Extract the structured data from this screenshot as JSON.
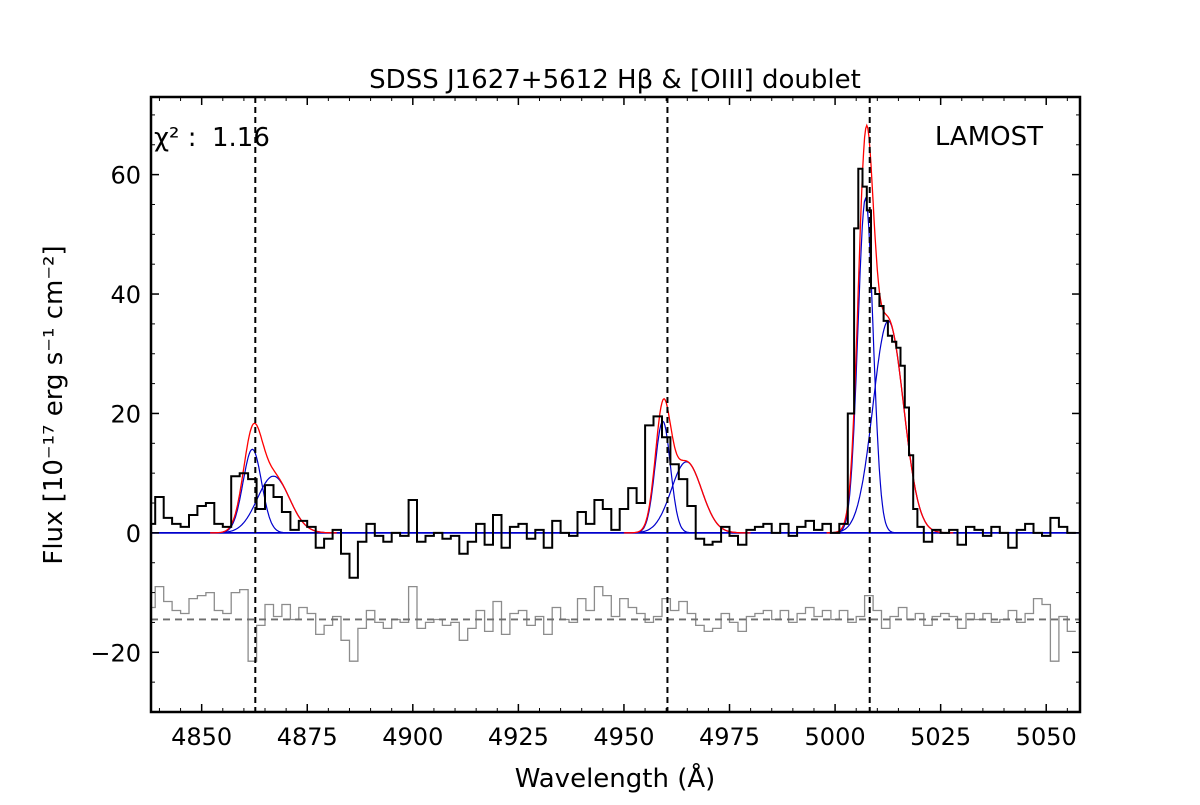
{
  "chart_data": {
    "type": "line",
    "title": "SDSS J1627+5612 Hβ & [OIII] doublet",
    "xlabel": "Wavelength (Å)",
    "ylabel": "Flux [10⁻¹⁷ erg s⁻¹ cm⁻²]",
    "xlim": [
      4838,
      5058
    ],
    "ylim": [
      -30,
      73
    ],
    "x_ticks": [
      4850,
      4875,
      4900,
      4925,
      4950,
      4975,
      5000,
      5025,
      5050
    ],
    "y_ticks": [
      -20,
      0,
      20,
      40,
      60
    ],
    "grid": false,
    "annotations": {
      "chi2_label": "χ² :",
      "chi2_value": "1.16",
      "instrument": "LAMOST"
    },
    "vertical_lines": [
      4862.7,
      4960.3,
      5008.2
    ],
    "residual_offset": -14.5,
    "colors": {
      "data": "#000000",
      "total_fit": "#ff0000",
      "components": "#0000cc",
      "residual": "#8c8c8c",
      "reference": "#000000"
    },
    "fit_components": [
      {
        "center": 4862.0,
        "amplitude": 14.0,
        "sigma": 2.2
      },
      {
        "center": 4867.0,
        "amplitude": 9.5,
        "sigma": 3.8
      },
      {
        "center": 4959.2,
        "amplitude": 18.7,
        "sigma": 1.8
      },
      {
        "center": 4964.8,
        "amplitude": 11.9,
        "sigma": 3.6
      },
      {
        "center": 5007.2,
        "amplitude": 56.0,
        "sigma": 1.8
      },
      {
        "center": 5012.6,
        "amplitude": 35.5,
        "sigma": 3.6
      }
    ],
    "series": [
      {
        "x": [
          4838,
          4840,
          4842,
          4844,
          4846,
          4848,
          4850,
          4852,
          4854,
          4856,
          4858,
          4860,
          4862,
          4864,
          4866,
          4868,
          4870,
          4872,
          4874,
          4876,
          4878,
          4880,
          4882,
          4884,
          4886,
          4888,
          4890,
          4892,
          4894,
          4896,
          4898,
          4900,
          4902,
          4904,
          4906,
          4908,
          4910,
          4912,
          4914,
          4916,
          4918,
          4920,
          4922,
          4924,
          4926,
          4928,
          4930,
          4932,
          4934,
          4936,
          4938,
          4940,
          4942,
          4944,
          4946,
          4948,
          4950,
          4952,
          4954,
          4956,
          4958,
          4960,
          4962,
          4964,
          4966,
          4968,
          4970,
          4972,
          4974,
          4976,
          4978,
          4980,
          4982,
          4984,
          4986,
          4988,
          4990,
          4992,
          4994,
          4996,
          4998,
          5000,
          5002,
          5004,
          5005,
          5006,
          5007,
          5008,
          5009,
          5010,
          5011,
          5012,
          5013,
          5014,
          5015,
          5016,
          5017,
          5018,
          5019,
          5020,
          5022,
          5024,
          5026,
          5028,
          5030,
          5032,
          5034,
          5036,
          5038,
          5040,
          5042,
          5044,
          5046,
          5048,
          5050,
          5052,
          5054,
          5056
        ],
        "y": [
          1.5,
          6.0,
          2.5,
          1.5,
          1.0,
          3.0,
          4.5,
          5.0,
          1.5,
          1.0,
          9.5,
          10.0,
          9.0,
          4.0,
          8.0,
          6.0,
          3.5,
          0.5,
          2.0,
          1.0,
          -2.5,
          -1.0,
          0.5,
          -3.5,
          -7.5,
          -1.5,
          1.5,
          -0.5,
          -1.5,
          0.0,
          -0.5,
          5.5,
          -1.5,
          -0.5,
          0.0,
          -1.0,
          -0.5,
          -3.5,
          -1.5,
          1.5,
          -2.0,
          3.0,
          -2.5,
          1.0,
          1.5,
          -1.0,
          0.5,
          -2.5,
          2.0,
          0.0,
          -0.5,
          3.5,
          1.5,
          5.5,
          4.0,
          0.5,
          4.0,
          7.5,
          5.0,
          18.0,
          19.5,
          16.0,
          11.5,
          9.0,
          4.5,
          -1.0,
          -2.0,
          -1.5,
          1.0,
          -0.5,
          -2.0,
          0.5,
          1.0,
          1.5,
          0.0,
          1.5,
          -0.5,
          1.0,
          2.0,
          0.5,
          1.5,
          0.0,
          1.5,
          20.0,
          51.0,
          61.0,
          58.0,
          54.0,
          41.0,
          40.0,
          38.0,
          35.5,
          33.0,
          32.0,
          31.0,
          28.0,
          21.0,
          13.0,
          4.0,
          1.0,
          -1.5,
          0.5,
          0.0,
          0.5,
          -2.0,
          1.0,
          0.5,
          -0.5,
          1.0,
          0.0,
          -2.5,
          0.5,
          1.5,
          0.0,
          -0.5,
          2.5,
          1.0,
          0.0
        ]
      },
      {
        "x": [
          4838,
          4840,
          4842,
          4844,
          4846,
          4848,
          4850,
          4852,
          4854,
          4856,
          4858,
          4860,
          4862,
          4864,
          4866,
          4868,
          4870,
          4872,
          4874,
          4876,
          4878,
          4880,
          4882,
          4884,
          4886,
          4888,
          4890,
          4892,
          4894,
          4896,
          4898,
          4900,
          4902,
          4904,
          4906,
          4908,
          4910,
          4912,
          4914,
          4916,
          4918,
          4920,
          4922,
          4924,
          4926,
          4928,
          4930,
          4932,
          4934,
          4936,
          4938,
          4940,
          4942,
          4944,
          4946,
          4948,
          4950,
          4952,
          4954,
          4956,
          4958,
          4960,
          4962,
          4964,
          4966,
          4968,
          4970,
          4972,
          4974,
          4976,
          4978,
          4980,
          4982,
          4984,
          4986,
          4988,
          4990,
          4992,
          4994,
          4996,
          4998,
          5000,
          5002,
          5004,
          5006,
          5008,
          5010,
          5012,
          5014,
          5016,
          5018,
          5020,
          5022,
          5024,
          5026,
          5028,
          5030,
          5032,
          5034,
          5036,
          5038,
          5040,
          5042,
          5044,
          5046,
          5048,
          5050,
          5052,
          5054,
          5056
        ],
        "y": [
          -12.5,
          -9.0,
          -11.5,
          -13.0,
          -13.5,
          -11.0,
          -10.5,
          -10.0,
          -13.0,
          -13.5,
          -10.0,
          -9.5,
          -21.5,
          -15.5,
          -12.0,
          -14.0,
          -12.0,
          -14.5,
          -12.5,
          -13.5,
          -17.0,
          -15.5,
          -14.0,
          -18.0,
          -21.5,
          -16.0,
          -13.0,
          -15.0,
          -16.0,
          -14.5,
          -15.0,
          -9.0,
          -16.0,
          -15.0,
          -14.5,
          -15.5,
          -15.0,
          -18.0,
          -16.0,
          -13.0,
          -16.5,
          -11.5,
          -17.0,
          -13.5,
          -13.0,
          -15.5,
          -14.0,
          -17.0,
          -12.5,
          -14.5,
          -15.0,
          -11.0,
          -13.0,
          -9.0,
          -10.5,
          -14.0,
          -11.0,
          -12.5,
          -13.5,
          -15.0,
          -14.0,
          -11.0,
          -13.0,
          -11.5,
          -13.5,
          -15.5,
          -16.5,
          -16.0,
          -13.5,
          -15.0,
          -16.5,
          -14.0,
          -13.5,
          -13.0,
          -14.5,
          -13.0,
          -15.0,
          -13.5,
          -12.5,
          -14.0,
          -13.0,
          -14.5,
          -13.0,
          -15.0,
          -14.0,
          -10.5,
          -13.0,
          -16.0,
          -14.0,
          -12.5,
          -14.5,
          -13.5,
          -15.5,
          -14.0,
          -13.5,
          -14.0,
          -16.0,
          -13.5,
          -14.5,
          -13.5,
          -15.0,
          -14.5,
          -13.0,
          -15.0,
          -13.5,
          -11.0,
          -12.0,
          -21.5,
          -14.0,
          -16.5
        ]
      }
    ]
  }
}
